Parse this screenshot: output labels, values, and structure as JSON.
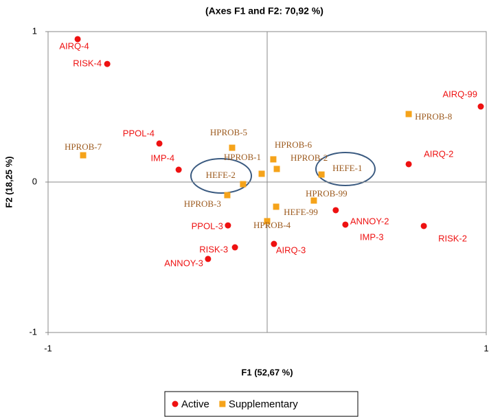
{
  "chart_data": {
    "type": "scatter",
    "title": "(Axes F1 and F2: 70,92 %)",
    "x_label": "F1 (52,67 %)",
    "y_label": "F2 (18,25 %)",
    "xlim": [
      -1,
      1
    ],
    "ylim": [
      -1,
      1
    ],
    "xticks": [
      -1,
      1
    ],
    "yticks": [
      -1,
      0,
      1
    ],
    "legend": "bottom",
    "series": [
      {
        "name": "Active",
        "color": "#ee1111",
        "marker": "circle",
        "labels": [
          "AIRQ-4",
          "RISK-4",
          "AIRQ-99",
          "PPOL-4",
          "IMP-4",
          "AIRQ-2",
          "ANNOY-2",
          "IMP-3",
          "RISK-2",
          "PPOL-3",
          "RISK-3",
          "ANNOY-3",
          "AIRQ-3"
        ],
        "x": [
          -0.865,
          -0.73,
          0.975,
          -0.492,
          -0.404,
          0.646,
          0.313,
          0.357,
          0.715,
          -0.179,
          -0.147,
          -0.27,
          0.031
        ],
        "values": [
          0.95,
          0.785,
          0.502,
          0.256,
          0.082,
          0.119,
          -0.187,
          -0.283,
          -0.292,
          -0.288,
          -0.434,
          -0.511,
          -0.411
        ]
      },
      {
        "name": "Supplementary",
        "color": "#f5a31a",
        "marker": "square",
        "labels": [
          "HPROB-7",
          "HPROB-8",
          "HPROB-5",
          "HPROB-6",
          "HPROB-1",
          "HPROB-2",
          "HEFE-2",
          "HEFE-1",
          "HPROB-3",
          "HPROB-99",
          "HEFE-99",
          "HPROB-4"
        ],
        "x": [
          -0.84,
          0.646,
          -0.16,
          0.028,
          -0.025,
          0.044,
          -0.11,
          0.248,
          -0.182,
          0.213,
          0.041,
          0.0
        ],
        "values": [
          0.178,
          0.452,
          0.228,
          0.151,
          0.055,
          0.087,
          -0.014,
          0.05,
          -0.087,
          -0.123,
          -0.164,
          -0.26
        ]
      }
    ]
  }
}
